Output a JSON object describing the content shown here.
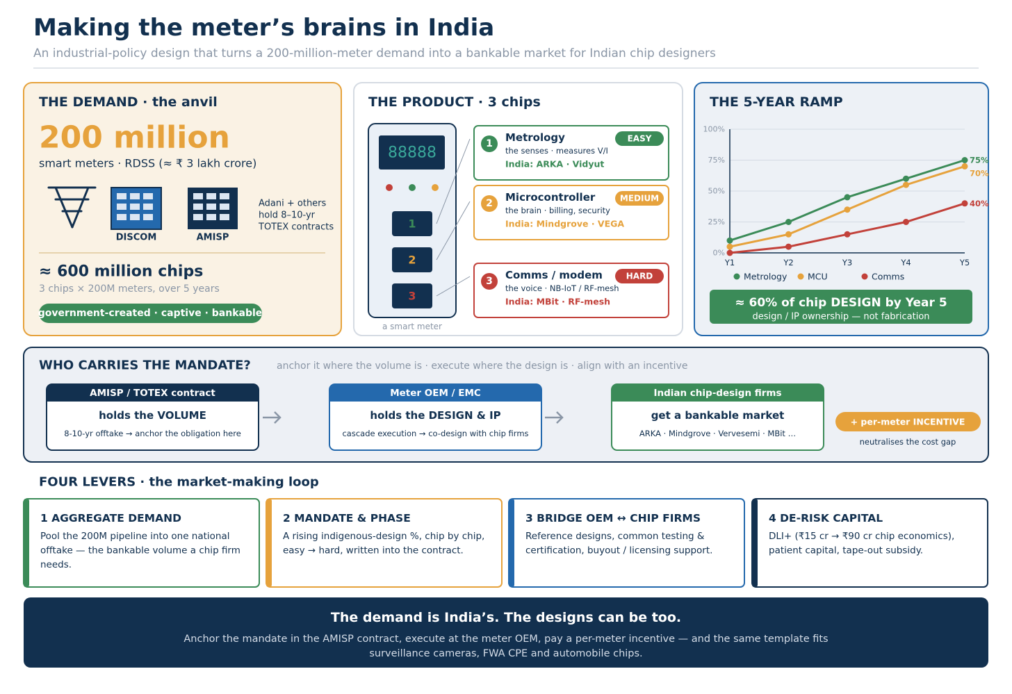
{
  "header": {
    "title": "Making the meter’s brains in India",
    "subtitle": "An industrial-policy design that turns a 200-million-meter demand into a bankable market for Indian chip designers"
  },
  "demand": {
    "heading": "THE DEMAND · the anvil",
    "big_number": "200 million",
    "subline": "smart meters · RDSS (≈ ₹ 3 lakh crore)",
    "icons": [
      "DISCOM",
      "AMISP"
    ],
    "note": [
      "Adani + others",
      "hold 8–10-yr",
      "TOTEX contracts"
    ],
    "chips": "≈ 600 million chips",
    "chips_sub": "3 chips × 200M meters, over 5 years",
    "badge": "government-created · captive · bankable"
  },
  "product": {
    "heading": "THE PRODUCT · 3 chips",
    "display": "88888",
    "caption": "a smart meter",
    "chips": [
      {
        "number": "1",
        "name": "Metrology",
        "level": "EASY",
        "desc": "the senses · measures V/I",
        "india": "India: ARKA · Vidyut"
      },
      {
        "number": "2",
        "name": "Microcontroller",
        "level": "MEDIUM",
        "desc": "the brain · billing, security",
        "india": "India: Mindgrove · VEGA"
      },
      {
        "number": "3",
        "name": "Comms / modem",
        "level": "HARD",
        "desc": "the voice · NB-IoT / RF-mesh",
        "india": "India: MBit · RF-mesh"
      }
    ]
  },
  "chart_data": {
    "type": "line",
    "title": "THE 5-YEAR RAMP",
    "categories": [
      "Y1",
      "Y2",
      "Y3",
      "Y4",
      "Y5"
    ],
    "series": [
      {
        "name": "Metrology",
        "color": "#3b8b58",
        "values": [
          10,
          25,
          45,
          60,
          75
        ],
        "value_labels": [
          null,
          null,
          null,
          null,
          "75%"
        ]
      },
      {
        "name": "MCU",
        "color": "#e6a23c",
        "values": [
          5,
          15,
          35,
          55,
          70
        ],
        "value_labels": [
          null,
          null,
          null,
          null,
          "70%"
        ]
      },
      {
        "name": "Comms",
        "color": "#c2413a",
        "values": [
          0,
          5,
          15,
          25,
          40
        ],
        "value_labels": [
          null,
          null,
          null,
          null,
          "40%"
        ]
      }
    ],
    "ylim": [
      0,
      100
    ],
    "yticks": [
      {
        "value": 0,
        "label": "0%"
      },
      {
        "value": 25,
        "label": "25%"
      },
      {
        "value": 50,
        "label": "50%"
      },
      {
        "value": 75,
        "label": "75%"
      },
      {
        "value": 100,
        "label": "100%"
      }
    ],
    "grid": true,
    "legend": "bottom",
    "annotations": [
      "≈ 60% of chip DESIGN by Year 5",
      "design / IP ownership — not fabrication"
    ]
  },
  "mandate": {
    "heading": "WHO CARRIES THE MANDATE?",
    "tagline": "anchor it where the volume is · execute where the design is · align with an incentive",
    "boxes": [
      {
        "head": "AMISP / TOTEX contract",
        "title": "holds the VOLUME",
        "text": "8-10-yr offtake → anchor the obligation here"
      },
      {
        "head": "Meter OEM / EMC",
        "title": "holds the DESIGN & IP",
        "text": "cascade execution → co-design with chip firms"
      },
      {
        "head": "Indian chip-design firms",
        "title": "get a bankable market",
        "text": "ARKA · Mindgrove · Vervesemi · MBit …"
      }
    ],
    "incentive": "+ per-meter INCENTIVE",
    "incentive_note": "neutralises the cost gap"
  },
  "levers": {
    "heading": "FOUR LEVERS · the market-making loop",
    "items": [
      {
        "title": "1 AGGREGATE DEMAND",
        "text": [
          "Pool the 200M pipeline into one national",
          "offtake — the bankable volume a chip firm",
          "needs."
        ]
      },
      {
        "title": "2 MANDATE & PHASE",
        "text": [
          "A rising indigenous-design %, chip by chip,",
          "easy → hard, written into the contract."
        ]
      },
      {
        "title": "3 BRIDGE OEM ↔ CHIP FIRMS",
        "text": [
          "Reference designs, common testing &",
          "certification, buyout / licensing support."
        ]
      },
      {
        "title": "4 DE-RISK CAPITAL",
        "text": [
          "DLI+ (₹15 cr → ₹90 cr chip economics),",
          "patient capital, tape-out subsidy."
        ]
      }
    ]
  },
  "footer": {
    "title": "The demand is India’s. The designs can be too.",
    "text": [
      "Anchor the mandate in the AMISP contract, execute at the meter OEM, pay a per-meter incentive — and the same template fits",
      "surveillance cameras, FWA CPE and automobile chips."
    ]
  }
}
